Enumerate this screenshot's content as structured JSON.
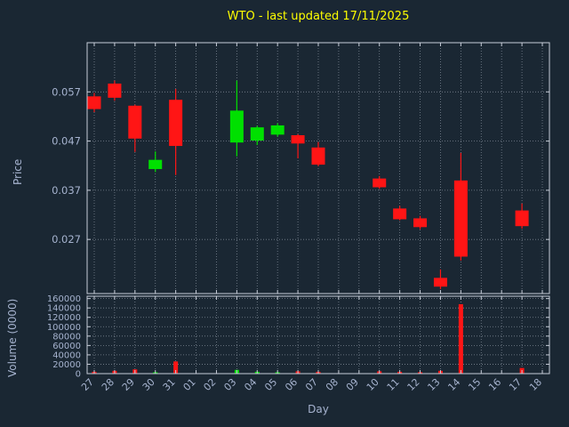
{
  "colors": {
    "background": "#1a2733",
    "title": "#ffff00",
    "axis_text": "#a6b3cf",
    "grid": "#b9c2cf",
    "spine": "#c7cdd8",
    "up": "#00e000",
    "down": "#ff1515"
  },
  "chart_data": {
    "type": "candlestick_with_volume",
    "title": "WTO - last updated 17/11/2025",
    "xlabel": "Day",
    "ylabel_price": "Price",
    "ylabel_volume": "Volume (0000)",
    "x_tick_labels": [
      "27",
      "28",
      "29",
      "30",
      "31",
      "01",
      "02",
      "03",
      "04",
      "05",
      "06",
      "07",
      "08",
      "09",
      "10",
      "11",
      "12",
      "13",
      "14",
      "15",
      "16",
      "17",
      "18"
    ],
    "price_ticks": [
      0.027,
      0.037,
      0.047,
      0.057
    ],
    "price_ylim": [
      0.016,
      0.067
    ],
    "volume_ticks": [
      0,
      20000,
      40000,
      60000,
      80000,
      100000,
      120000,
      140000,
      160000
    ],
    "volume_ylim": [
      0,
      165000
    ],
    "legend": "none",
    "grid": "dotted",
    "candles": [
      {
        "day": "27",
        "open": 0.056,
        "high": 0.0568,
        "low": 0.0529,
        "close": 0.0536,
        "volume": 4000
      },
      {
        "day": "28",
        "open": 0.0586,
        "high": 0.0593,
        "low": 0.0552,
        "close": 0.0559,
        "volume": 6000
      },
      {
        "day": "29",
        "open": 0.0541,
        "high": 0.0544,
        "low": 0.0448,
        "close": 0.0476,
        "volume": 9000
      },
      {
        "day": "30",
        "open": 0.0414,
        "high": 0.0449,
        "low": 0.0407,
        "close": 0.0431,
        "volume": 3000
      },
      {
        "day": "31",
        "open": 0.0553,
        "high": 0.0576,
        "low": 0.0401,
        "close": 0.0461,
        "volume": 26000
      },
      {
        "day": "03",
        "open": 0.0468,
        "high": 0.0593,
        "low": 0.0439,
        "close": 0.0531,
        "volume": 8000
      },
      {
        "day": "04",
        "open": 0.0472,
        "high": 0.0501,
        "low": 0.0462,
        "close": 0.0497,
        "volume": 4000
      },
      {
        "day": "05",
        "open": 0.0484,
        "high": 0.0506,
        "low": 0.0479,
        "close": 0.0501,
        "volume": 3000
      },
      {
        "day": "06",
        "open": 0.0481,
        "high": 0.0484,
        "low": 0.0435,
        "close": 0.0466,
        "volume": 5000
      },
      {
        "day": "07",
        "open": 0.0456,
        "high": 0.0468,
        "low": 0.0419,
        "close": 0.0423,
        "volume": 4000
      },
      {
        "day": "10",
        "open": 0.0393,
        "high": 0.0399,
        "low": 0.0373,
        "close": 0.0377,
        "volume": 5000
      },
      {
        "day": "11",
        "open": 0.0332,
        "high": 0.0338,
        "low": 0.0309,
        "close": 0.0312,
        "volume": 4000
      },
      {
        "day": "12",
        "open": 0.0312,
        "high": 0.0318,
        "low": 0.0291,
        "close": 0.0296,
        "volume": 3000
      },
      {
        "day": "13",
        "open": 0.0191,
        "high": 0.0209,
        "low": 0.0169,
        "close": 0.0175,
        "volume": 6000
      },
      {
        "day": "14",
        "open": 0.0389,
        "high": 0.0446,
        "low": 0.0227,
        "close": 0.0236,
        "volume": 148000
      },
      {
        "day": "17",
        "open": 0.0328,
        "high": 0.0343,
        "low": 0.0292,
        "close": 0.0298,
        "volume": 12000
      }
    ]
  }
}
